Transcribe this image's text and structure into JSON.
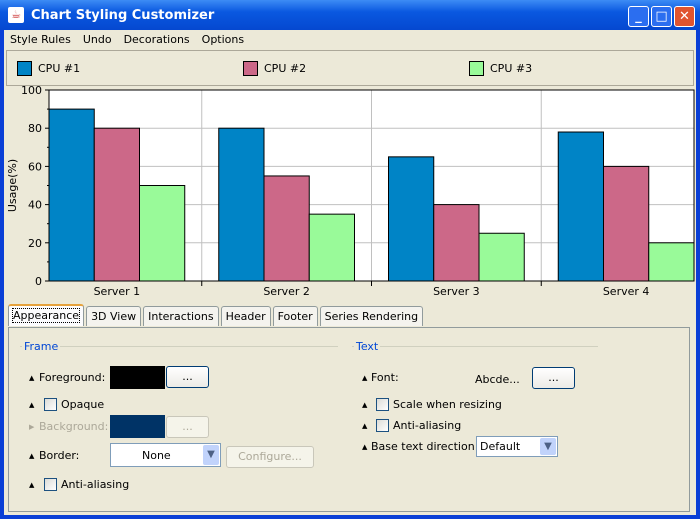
{
  "window": {
    "title": "Chart Styling Customizer",
    "minimize": "_",
    "maximize": "□",
    "close": "✕"
  },
  "menu": [
    "Style Rules",
    "Undo",
    "Decorations",
    "Options"
  ],
  "colors": {
    "cpu1": "#0084c6",
    "cpu2": "#cc6888",
    "cpu3": "#99fa99"
  },
  "chart_data": {
    "type": "bar",
    "categories": [
      "Server 1",
      "Server 2",
      "Server 3",
      "Server 4"
    ],
    "series": [
      {
        "name": "CPU #1",
        "values": [
          90,
          80,
          65,
          78
        ]
      },
      {
        "name": "CPU #2",
        "values": [
          80,
          55,
          40,
          60
        ]
      },
      {
        "name": "CPU #3",
        "values": [
          50,
          35,
          25,
          20
        ]
      }
    ],
    "ylabel": "Usage(%)",
    "ylim": [
      0,
      100
    ],
    "yticks": [
      "0",
      "20",
      "40",
      "60",
      "80",
      "100"
    ],
    "grid": true,
    "legend": "top"
  },
  "tabs": [
    "Appearance",
    "3D View",
    "Interactions",
    "Header",
    "Footer",
    "Series Rendering"
  ],
  "frame": {
    "title": "Frame",
    "foreground_label": "Foreground:",
    "foreground_color": "#000000",
    "ellipsis": "...",
    "opaque_label": "Opaque",
    "background_label": "Background:",
    "background_color": "#003366",
    "border_label": "Border:",
    "border_value": "None",
    "configure_label": "Configure...",
    "antialias_label": "Anti-aliasing"
  },
  "text": {
    "title": "Text",
    "font_label": "Font:",
    "font_sample": "Abcde...",
    "ellipsis": "...",
    "scale_label": "Scale when resizing",
    "antialias_label": "Anti-aliasing",
    "direction_label": "Base text direction:",
    "direction_value": "Default"
  }
}
